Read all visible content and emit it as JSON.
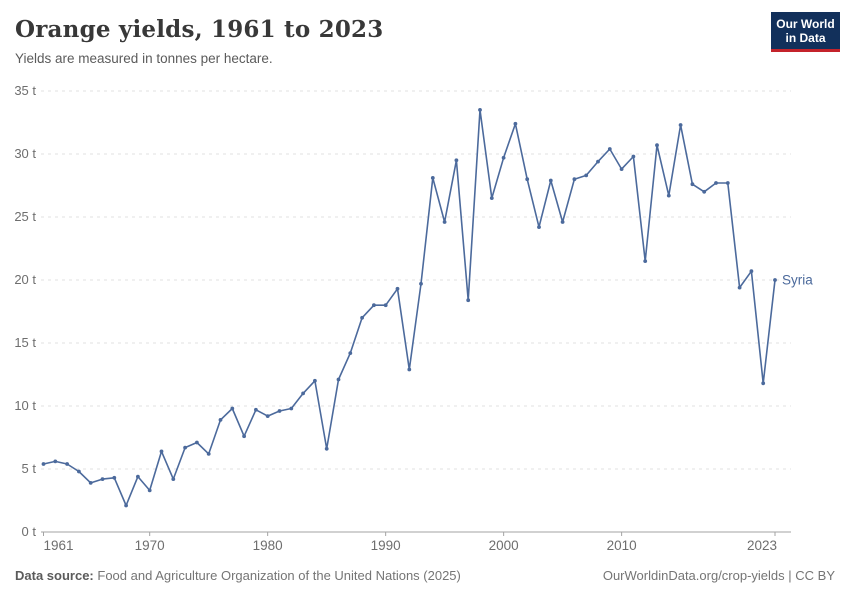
{
  "header": {
    "title": "Orange yields, 1961 to 2023",
    "subtitle": "Yields are measured in tonnes per hectare.",
    "logo": {
      "line1": "Our World",
      "line2": "in Data"
    }
  },
  "chart_data": {
    "type": "line",
    "title": "Orange yields, 1961 to 2023",
    "subtitle": "Yields are measured in tonnes per hectare.",
    "unit": "tonnes per hectare",
    "xlim": [
      1961,
      2023
    ],
    "ylim": [
      0,
      35
    ],
    "grid": "horizontal-dashed",
    "legend_position": "end-of-line",
    "x_ticks": [
      1961,
      1970,
      1980,
      1990,
      2000,
      2010,
      2023
    ],
    "x_tick_labels": [
      "1961",
      "1970",
      "1980",
      "1990",
      "2000",
      "2010",
      "2023"
    ],
    "y_ticks": [
      0,
      5,
      10,
      15,
      20,
      25,
      30,
      35
    ],
    "y_tick_labels": [
      "0 t",
      "5 t",
      "10 t",
      "15 t",
      "20 t",
      "25 t",
      "30 t",
      "35 t"
    ],
    "series": [
      {
        "name": "Syria",
        "color": "#4C6A9C",
        "points": [
          [
            1961,
            5.4
          ],
          [
            1962,
            5.6
          ],
          [
            1963,
            5.4
          ],
          [
            1964,
            4.8
          ],
          [
            1965,
            3.9
          ],
          [
            1966,
            4.2
          ],
          [
            1967,
            4.3
          ],
          [
            1968,
            2.1
          ],
          [
            1969,
            4.4
          ],
          [
            1970,
            3.3
          ],
          [
            1971,
            6.4
          ],
          [
            1972,
            4.2
          ],
          [
            1973,
            6.7
          ],
          [
            1974,
            7.1
          ],
          [
            1975,
            6.2
          ],
          [
            1976,
            8.9
          ],
          [
            1977,
            9.8
          ],
          [
            1978,
            7.6
          ],
          [
            1979,
            9.7
          ],
          [
            1980,
            9.2
          ],
          [
            1981,
            9.6
          ],
          [
            1982,
            9.8
          ],
          [
            1983,
            11.0
          ],
          [
            1984,
            12.0
          ],
          [
            1985,
            6.6
          ],
          [
            1986,
            12.1
          ],
          [
            1987,
            14.2
          ],
          [
            1988,
            17.0
          ],
          [
            1989,
            18.0
          ],
          [
            1990,
            18.0
          ],
          [
            1991,
            19.3
          ],
          [
            1992,
            12.9
          ],
          [
            1993,
            19.7
          ],
          [
            1994,
            28.1
          ],
          [
            1995,
            24.6
          ],
          [
            1996,
            29.5
          ],
          [
            1997,
            18.4
          ],
          [
            1998,
            33.5
          ],
          [
            1999,
            26.5
          ],
          [
            2000,
            29.7
          ],
          [
            2001,
            32.4
          ],
          [
            2002,
            28.0
          ],
          [
            2003,
            24.2
          ],
          [
            2004,
            27.9
          ],
          [
            2005,
            24.6
          ],
          [
            2006,
            28.0
          ],
          [
            2007,
            28.3
          ],
          [
            2008,
            29.4
          ],
          [
            2009,
            30.4
          ],
          [
            2010,
            28.8
          ],
          [
            2011,
            29.8
          ],
          [
            2012,
            21.5
          ],
          [
            2013,
            30.7
          ],
          [
            2014,
            26.7
          ],
          [
            2015,
            32.3
          ],
          [
            2016,
            27.6
          ],
          [
            2017,
            27.0
          ],
          [
            2018,
            27.7
          ],
          [
            2019,
            27.7
          ],
          [
            2020,
            19.4
          ],
          [
            2021,
            20.7
          ],
          [
            2022,
            11.8
          ],
          [
            2023,
            20.0
          ]
        ]
      }
    ]
  },
  "footer": {
    "source_label": "Data source:",
    "source_value": "Food and Agriculture Organization of the United Nations (2025)",
    "credit": "OurWorldinData.org/crop-yields | CC BY"
  },
  "colors": {
    "series": "#4C6A9C",
    "grid": "#e2e2e2",
    "axis": "#a3a3a3",
    "tick_text": "#6e6e6e",
    "logo_bg": "#12305B",
    "logo_bar": "#C4232B"
  }
}
